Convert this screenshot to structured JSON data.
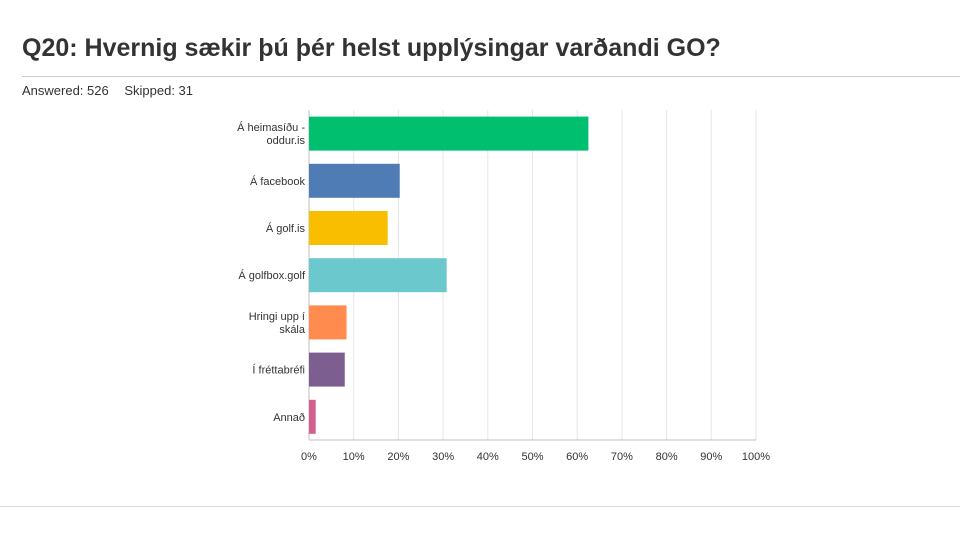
{
  "header": {
    "title": "Q20: Hvernig sækir þú þér helst upplýsingar varðandi GO?",
    "answered": "Answered: 526",
    "skipped": "Skipped: 31"
  },
  "chart_data": {
    "type": "bar",
    "orientation": "horizontal",
    "categories": [
      [
        "Á heimasíðu -",
        "oddur.is"
      ],
      [
        "Á facebook"
      ],
      [
        "Á golf.is"
      ],
      [
        "Á golfbox.golf"
      ],
      [
        "Hringi upp í",
        "skála"
      ],
      [
        "Í fréttabréfi"
      ],
      [
        "Annað"
      ]
    ],
    "values": [
      62.5,
      20.3,
      17.6,
      30.8,
      8.4,
      8.0,
      1.5
    ],
    "colors": [
      "#00bf6f",
      "#507cb6",
      "#f9be00",
      "#6bc8cd",
      "#ff8b4f",
      "#7d5e90",
      "#d25f90"
    ],
    "xlim": [
      0,
      100
    ],
    "ticks": [
      "0%",
      "10%",
      "20%",
      "30%",
      "40%",
      "50%",
      "60%",
      "70%",
      "80%",
      "90%",
      "100%"
    ],
    "grid": true
  }
}
